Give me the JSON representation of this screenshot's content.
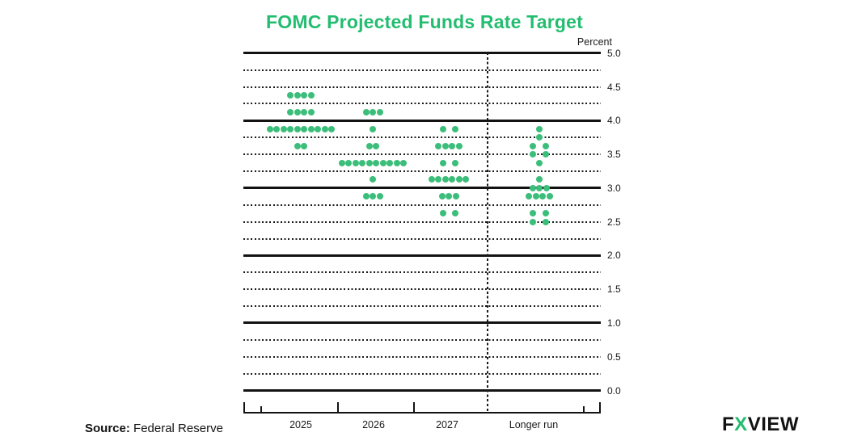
{
  "title": "FOMC Projected Funds Rate Target",
  "colors": {
    "title_green": "#23bd70",
    "dot_green": "#3cbe7b",
    "axis_black": "#121212"
  },
  "source": {
    "label": "Source:",
    "text": " Federal Reserve"
  },
  "logo": {
    "f": "F",
    "x": "X",
    "view": "VIEW"
  },
  "chart_data": {
    "type": "scatter",
    "subtype": "fomc-dot-plot",
    "title": "FOMC Projected Funds Rate Target",
    "ylabel": "Percent",
    "xlabel": "",
    "ylim": [
      0.0,
      5.0
    ],
    "grid_step": 0.25,
    "solid_gridlines_at_integers": true,
    "legend": "none",
    "yticks": [
      "5.0",
      "4.5",
      "4.0",
      "3.5",
      "3.0",
      "2.5",
      "2.0",
      "1.5",
      "1.0",
      "0.5",
      "0.0"
    ],
    "categories": [
      "2025",
      "2026",
      "2027",
      "Longer run"
    ],
    "series": [
      {
        "name": "2025",
        "dots": [
          {
            "rate": 4.375,
            "count": 4
          },
          {
            "rate": 4.125,
            "count": 4
          },
          {
            "rate": 3.875,
            "count": 10
          },
          {
            "rate": 3.625,
            "count": 2
          }
        ]
      },
      {
        "name": "2026",
        "dots": [
          {
            "rate": 4.125,
            "count": 3
          },
          {
            "rate": 3.875,
            "count": 1
          },
          {
            "rate": 3.625,
            "count": 2
          },
          {
            "rate": 3.375,
            "count": 10
          },
          {
            "rate": 3.125,
            "count": 1
          },
          {
            "rate": 2.875,
            "count": 3
          }
        ]
      },
      {
        "name": "2027",
        "dots": [
          {
            "rate": 3.875,
            "count": 2,
            "spacing": 15
          },
          {
            "rate": 3.625,
            "count": 4
          },
          {
            "rate": 3.375,
            "count": 2,
            "spacing": 15
          },
          {
            "rate": 3.125,
            "count": 6
          },
          {
            "rate": 2.875,
            "count": 3
          },
          {
            "rate": 2.625,
            "count": 2,
            "spacing": 15
          }
        ]
      },
      {
        "name": "Longer run",
        "dots": [
          {
            "rate": 3.875,
            "count": 1
          },
          {
            "rate": 3.75,
            "count": 1
          },
          {
            "rate": 3.625,
            "count": 2,
            "spacing": 16
          },
          {
            "rate": 3.5,
            "count": 2,
            "spacing": 16
          },
          {
            "rate": 3.375,
            "count": 1
          },
          {
            "rate": 3.125,
            "count": 1
          },
          {
            "rate": 3.0,
            "count": 3
          },
          {
            "rate": 2.875,
            "count": 4
          },
          {
            "rate": 2.625,
            "count": 2,
            "spacing": 16
          },
          {
            "rate": 2.5,
            "count": 2,
            "spacing": 16
          }
        ]
      }
    ]
  }
}
